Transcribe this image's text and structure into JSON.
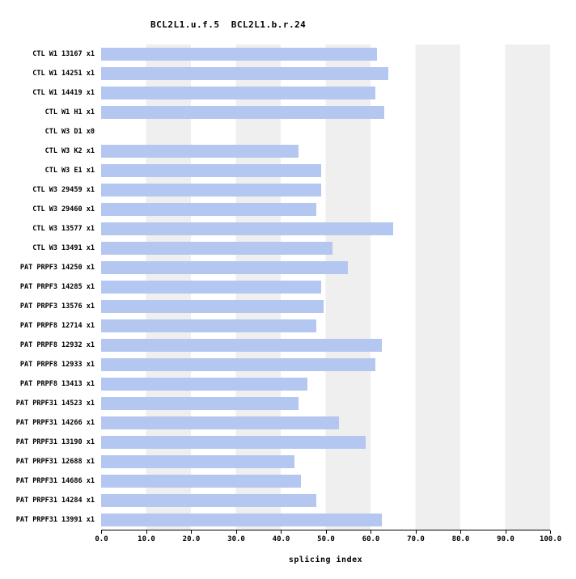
{
  "chart_data": {
    "type": "bar",
    "orientation": "horizontal",
    "title": "BCL2L1.u.f.5  BCL2L1.b.r.24",
    "xlabel": "splicing index",
    "xlim": [
      0,
      100
    ],
    "grid": "alternating vertical bands",
    "bar_color": "#b3c7f1",
    "band_color": "#efefef",
    "xticks": [
      0,
      10,
      20,
      30,
      40,
      50,
      60,
      70,
      80,
      90,
      100
    ],
    "xtick_labels": [
      "0.0",
      "10.0",
      "20.0",
      "30.0",
      "40.0",
      "50.0",
      "60.0",
      "70.0",
      "80.0",
      "90.0",
      "100.0"
    ],
    "categories": [
      "CTL W1 13167 x1",
      "CTL W1 14251 x1",
      "CTL W1 14419 x1",
      "CTL W1 H1 x1",
      "CTL W3 D1 x0",
      "CTL W3 K2 x1",
      "CTL W3 E1 x1",
      "CTL W3 29459 x1",
      "CTL W3 29460 x1",
      "CTL W3 13577 x1",
      "CTL W3 13491 x1",
      "PAT PRPF3 14250 x1",
      "PAT PRPF3 14285 x1",
      "PAT PRPF3 13576 x1",
      "PAT PRPF8 12714 x1",
      "PAT PRPF8 12932 x1",
      "PAT PRPF8 12933 x1",
      "PAT PRPF8 13413 x1",
      "PAT PRPF31 14523 x1",
      "PAT PRPF31 14266 x1",
      "PAT PRPF31 13190 x1",
      "PAT PRPF31 12688 x1",
      "PAT PRPF31 14686 x1",
      "PAT PRPF31 14284 x1",
      "PAT PRPF31 13991 x1"
    ],
    "values": [
      61.5,
      64,
      61,
      63,
      0,
      44,
      49,
      49,
      48,
      65,
      51.5,
      55,
      49,
      49.5,
      48,
      62.5,
      61,
      46,
      44,
      53,
      59,
      43,
      44.5,
      48,
      62.5
    ]
  }
}
